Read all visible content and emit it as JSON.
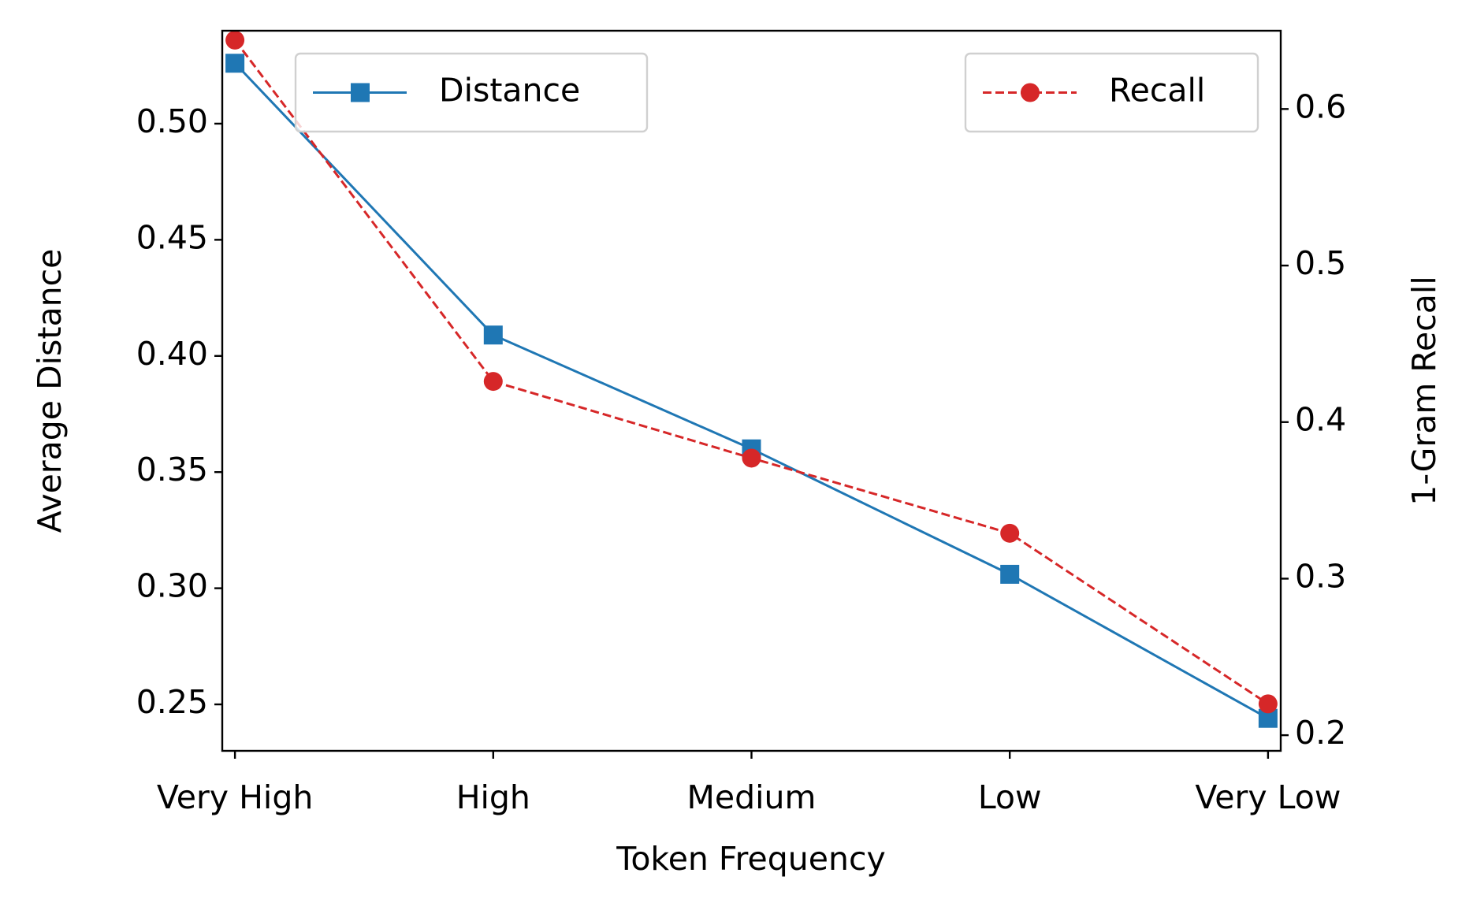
{
  "chart_data": {
    "type": "line",
    "xlabel": "Token Frequency",
    "ylabel": "Average Distance",
    "y2label": "1-Gram Recall",
    "categories": [
      "Very High",
      "High",
      "Medium",
      "Low",
      "Very Low"
    ],
    "series": [
      {
        "name": "Distance",
        "color": "#1f77b4",
        "marker": "square",
        "linestyle": "solid",
        "legend": "upper left",
        "values": [
          0.526,
          0.409,
          0.36,
          0.306,
          0.244
        ]
      },
      {
        "name": "Recall",
        "color": "#d62728",
        "marker": "circle",
        "linestyle": "dashed",
        "legend": "upper right",
        "axis": "y2",
        "values": [
          0.644,
          0.426,
          0.377,
          0.329,
          0.22
        ]
      }
    ],
    "ylim": [
      0.23,
      0.54
    ],
    "yticks": [
      0.25,
      {
        "value": 0.3,
        "label": "0.30"
      },
      0.35,
      {
        "value": 0.4,
        "label": "0.40"
      },
      0.45,
      {
        "value": 0.5,
        "label": "0.50"
      }
    ],
    "y2lim": [
      0.19,
      0.65
    ],
    "y2ticks": [
      0.2,
      0.3,
      0.4,
      0.5,
      0.6
    ],
    "grid": false
  }
}
